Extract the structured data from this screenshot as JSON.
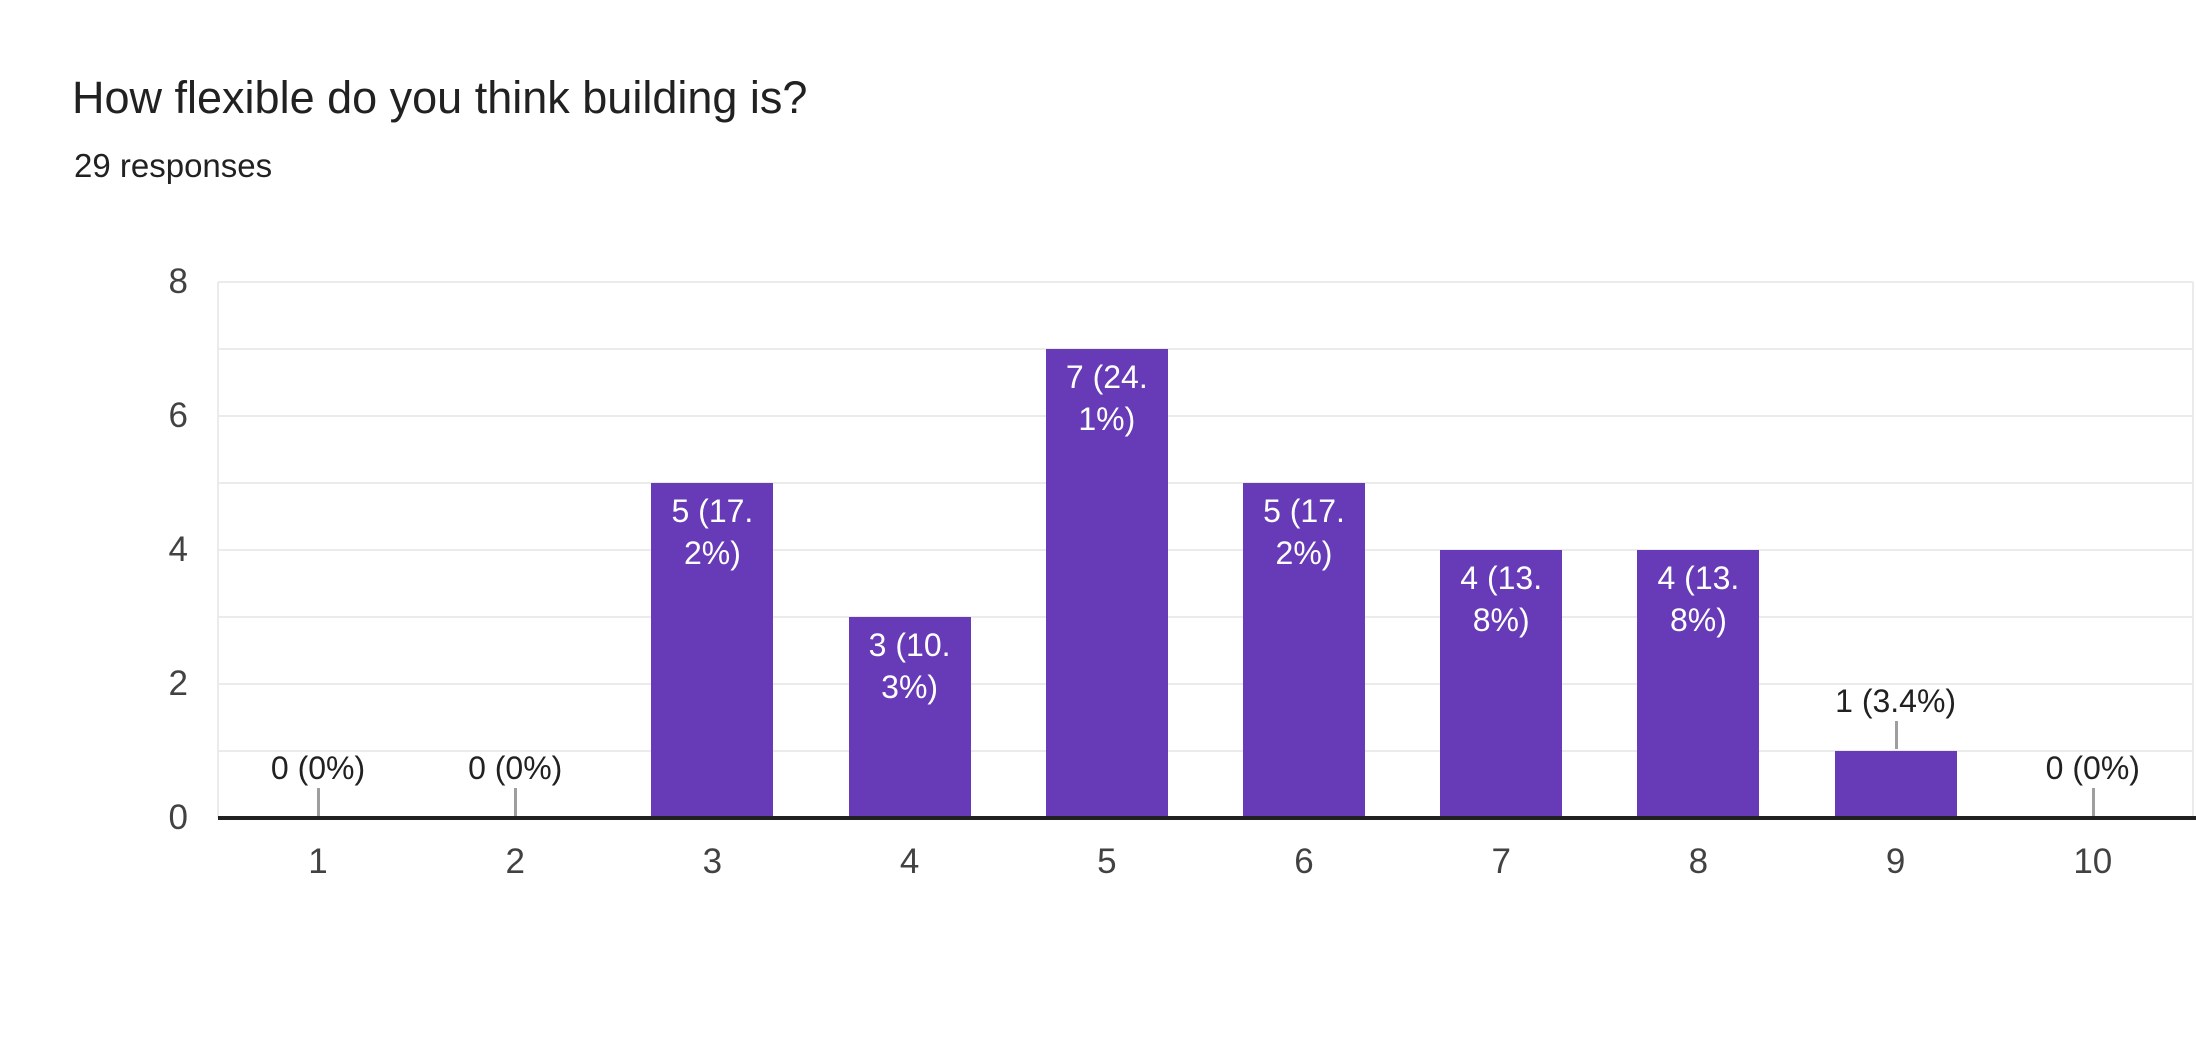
{
  "header": {
    "title": "How flexible do you think building is?",
    "subtitle": "29 responses"
  },
  "chart_data": {
    "type": "bar",
    "title": "How flexible do you think building is?",
    "subtitle": "29 responses",
    "categories": [
      "1",
      "2",
      "3",
      "4",
      "5",
      "6",
      "7",
      "8",
      "9",
      "10"
    ],
    "values": [
      0,
      0,
      5,
      3,
      7,
      5,
      4,
      4,
      1,
      0
    ],
    "data_labels": [
      "0 (0%)",
      "0 (0%)",
      "5 (17.2%)",
      "3 (10.3%)",
      "7 (24.1%)",
      "5 (17.2%)",
      "4 (13.8%)",
      "4 (13.8%)",
      "1 (3.4%)",
      "0 (0%)"
    ],
    "data_label_lines": [
      [
        "0 (0%)"
      ],
      [
        "0 (0%)"
      ],
      [
        "5 (17.",
        "2%)"
      ],
      [
        "3 (10.",
        "3%)"
      ],
      [
        "7 (24.",
        "1%)"
      ],
      [
        "5 (17.",
        "2%)"
      ],
      [
        "4 (13.",
        "8%)"
      ],
      [
        "4 (13.",
        "8%)"
      ],
      [
        "1 (3.4%)"
      ],
      [
        "0 (0%)"
      ]
    ],
    "data_label_placement": [
      "outside",
      "outside",
      "inside",
      "inside",
      "inside",
      "inside",
      "inside",
      "inside",
      "outside",
      "outside"
    ],
    "xlabel": "",
    "ylabel": "",
    "ylim": [
      0,
      8
    ],
    "yticks": [
      0,
      2,
      4,
      6,
      8
    ],
    "grid": "horizontal gridlines every 1 unit",
    "legend": "none",
    "colors": {
      "bar": "#673ab7",
      "label_inside": "#ffffff",
      "label_outside": "#212121",
      "axis_line": "#212121",
      "tick_label": "#424242",
      "gridline": "#ebebeb",
      "stub_line": "#9e9e9e",
      "background": "#ffffff"
    }
  }
}
